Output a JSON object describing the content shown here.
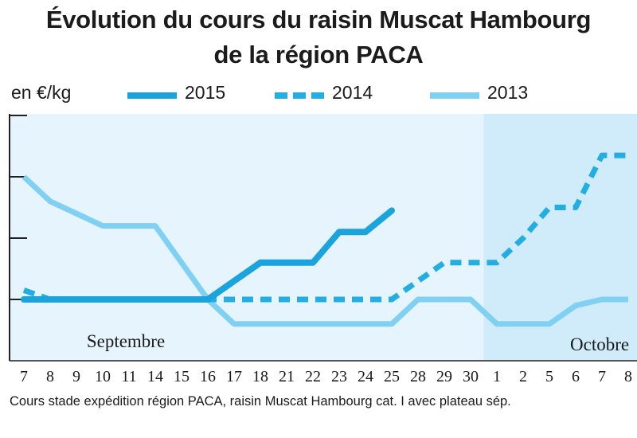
{
  "chart_data": {
    "type": "line",
    "title": "Évolution du cours du raisin Muscat Hambourg",
    "title_line2": "de la région PACA",
    "ylabel": "en €/kg",
    "months": [
      "Septembre",
      "Octobre"
    ],
    "categories": [
      "7",
      "8",
      "9",
      "10",
      "11",
      "14",
      "15",
      "16",
      "17",
      "18",
      "21",
      "22",
      "23",
      "24",
      "25",
      "28",
      "29",
      "30",
      "1",
      "2",
      "5",
      "6",
      "7",
      "8"
    ],
    "series": [
      {
        "name": "2015",
        "style": "solid-thick",
        "color": "#1aa3dc",
        "values": [
          1,
          1,
          1,
          1,
          1,
          1,
          1,
          1,
          1.3,
          1.6,
          1.6,
          1.6,
          2.1,
          2.1,
          2.45,
          null,
          null,
          null,
          null,
          null,
          null,
          null,
          null,
          null
        ]
      },
      {
        "name": "2014",
        "style": "dashed",
        "color": "#23aee3",
        "values": [
          1.15,
          1,
          1,
          1,
          1,
          1,
          1,
          1,
          1,
          1,
          1,
          1,
          1,
          1,
          1,
          1.3,
          1.6,
          1.6,
          1.6,
          2,
          2.5,
          2.5,
          3.35,
          3.35
        ]
      },
      {
        "name": "2013",
        "style": "solid-light",
        "color": "#7fd0f2",
        "values": [
          3,
          2.6,
          2.4,
          2.2,
          2.2,
          2.2,
          1.6,
          1.0,
          0.6,
          0.6,
          0.6,
          0.6,
          0.6,
          0.6,
          0.6,
          1.0,
          1.0,
          1.0,
          0.6,
          0.6,
          0.6,
          0.9,
          1.0,
          1.0
        ]
      }
    ],
    "yticks": 4,
    "grid": false,
    "legend": "top",
    "highlight_region": "Octobre",
    "footnote": "Cours stade expédition région PACA, raisin Muscat Hambourg cat. I avec plateau sép."
  }
}
